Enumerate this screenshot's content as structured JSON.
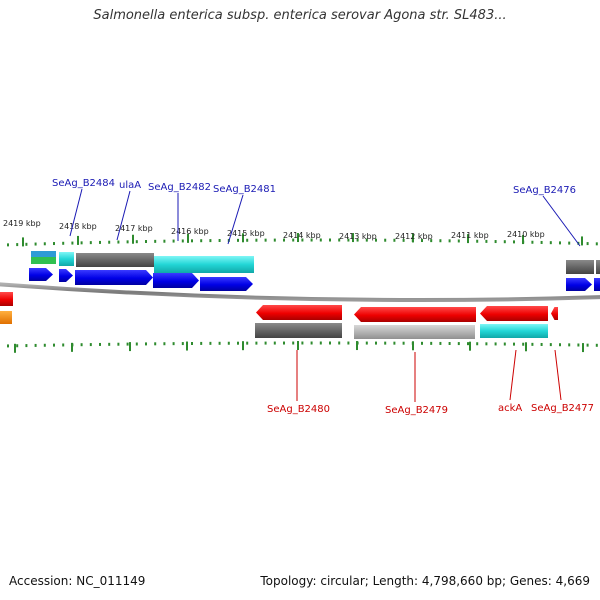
{
  "title": "Salmonella enterica subsp. enterica serovar Agona str. SL483...",
  "footer": {
    "accession": "Accession: NC_011149",
    "topology": "Topology: circular; Length: 4,798,660 bp; Genes: 4,669"
  },
  "colors": {
    "forward_label": "#1a1ab4",
    "reverse_label": "#cc0000",
    "tick": "#2e8b2e",
    "backbone": "#808080"
  },
  "kbp_labels": [
    "2419 kbp",
    "2418 kbp",
    "2417 kbp",
    "2416 kbp",
    "2415 kbp",
    "2414 kbp",
    "2413 kbp",
    "2412 kbp",
    "2411 kbp",
    "2410 kbp"
  ],
  "forward_gene_labels": [
    "SeAg_B2484",
    "ulaA",
    "SeAg_B2482",
    "SeAg_B2481",
    "SeAg_B2476"
  ],
  "reverse_gene_labels": [
    "SeAg_B2480",
    "SeAg_B2479",
    "ackA",
    "SeAg_B2477"
  ]
}
